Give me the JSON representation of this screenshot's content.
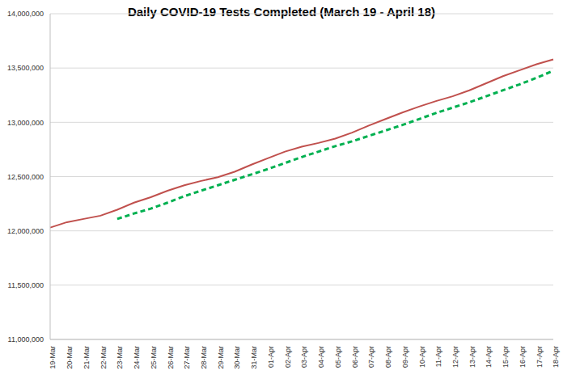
{
  "chart_data": {
    "type": "line",
    "title": "Daily COVID-19 Tests Completed (March 19 - April 18)",
    "categories": [
      "19-Mar",
      "20-Mar",
      "21-Mar",
      "22-Mar",
      "23-Mar",
      "24-Mar",
      "25-Mar",
      "26-Mar",
      "27-Mar",
      "28-Mar",
      "29-Mar",
      "30-Mar",
      "31-Mar",
      "01-Apr",
      "02-Apr",
      "03-Apr",
      "04-Apr",
      "05-Apr",
      "06-Apr",
      "07-Apr",
      "08-Apr",
      "09-Apr",
      "10-Apr",
      "11-Apr",
      "12-Apr",
      "13-Apr",
      "14-Apr",
      "15-Apr",
      "16-Apr",
      "17-Apr",
      "18-Apr"
    ],
    "series": [
      {
        "color": "#c0504d",
        "line_style": "solid",
        "marker": "none",
        "values": [
          12030000,
          12080000,
          12110000,
          12140000,
          12195000,
          12260000,
          12310000,
          12370000,
          12420000,
          12460000,
          12495000,
          12545000,
          12610000,
          12670000,
          12730000,
          12775000,
          12810000,
          12850000,
          12905000,
          12970000,
          13030000,
          13090000,
          13145000,
          13195000,
          13240000,
          13295000,
          13360000,
          13425000,
          13480000,
          13535000,
          13580000
        ]
      },
      {
        "color": "#00b050",
        "line_style": "dashed",
        "marker": "none",
        "values": [
          null,
          null,
          null,
          null,
          12110000,
          12160000,
          12205000,
          12260000,
          12320000,
          12370000,
          12420000,
          12470000,
          12520000,
          12570000,
          12625000,
          12680000,
          12730000,
          12780000,
          12825000,
          12875000,
          12925000,
          12975000,
          13030000,
          13085000,
          13135000,
          13185000,
          13240000,
          13295000,
          13350000,
          13410000,
          13475000
        ]
      }
    ],
    "ylim": [
      11000000,
      14000000
    ],
    "yticks": [
      {
        "value": 11000000,
        "label": "11,000,000"
      },
      {
        "value": 11500000,
        "label": "11,500,000"
      },
      {
        "value": 12000000,
        "label": "12,000,000"
      },
      {
        "value": 12500000,
        "label": "12,500,000"
      },
      {
        "value": 13000000,
        "label": "13,000,000"
      },
      {
        "value": 13500000,
        "label": "13,500,000"
      },
      {
        "value": 14000000,
        "label": "14,000,000"
      }
    ],
    "grid": true
  }
}
